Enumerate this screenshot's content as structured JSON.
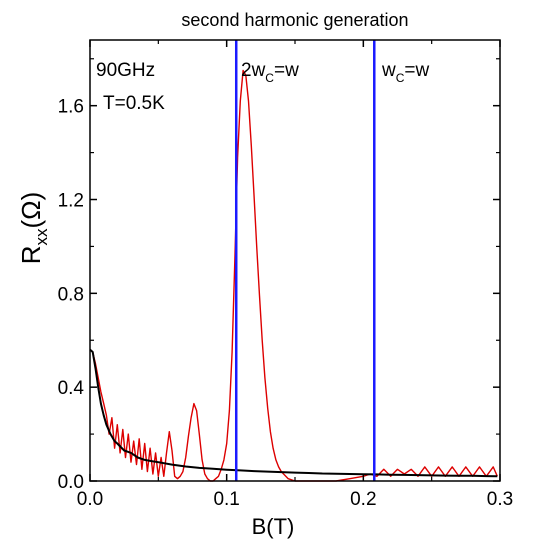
{
  "chart_data": {
    "type": "line",
    "title": "second harmonic generation",
    "xlabel": "B(T)",
    "ylabel": {
      "base": "R",
      "sub": "xx",
      "rest": "(Ω)"
    },
    "xlim": [
      0.0,
      0.3
    ],
    "ylim": [
      0.0,
      1.88
    ],
    "xticks": [
      0.0,
      0.1,
      0.2,
      0.3
    ],
    "xtick_labels": [
      "0.0",
      "0.1",
      "0.2",
      "0.3"
    ],
    "yticks": [
      0.0,
      0.4,
      0.8,
      1.2,
      1.6
    ],
    "ytick_labels": [
      "0.0",
      "0.4",
      "0.8",
      "1.2",
      "1.6"
    ],
    "grid": false,
    "annotations": {
      "freq": "90GHz",
      "temp": "T=0.5K",
      "line1": {
        "pre": "2w",
        "sub": "C",
        "post": "=w"
      },
      "line2": {
        "pre": "w",
        "sub": "C",
        "post": "=w"
      }
    },
    "vertical_lines": [
      {
        "x": 0.107,
        "color": "#1a1aff"
      },
      {
        "x": 0.208,
        "color": "#1a1aff"
      }
    ],
    "series": [
      {
        "color": "#dd0000",
        "x": [
          0.0,
          0.002,
          0.004,
          0.006,
          0.008,
          0.01,
          0.012,
          0.014,
          0.016,
          0.018,
          0.02,
          0.022,
          0.024,
          0.026,
          0.028,
          0.03,
          0.032,
          0.034,
          0.036,
          0.038,
          0.04,
          0.042,
          0.044,
          0.046,
          0.048,
          0.05,
          0.052,
          0.054,
          0.056,
          0.058,
          0.06,
          0.062,
          0.064,
          0.066,
          0.068,
          0.07,
          0.072,
          0.074,
          0.076,
          0.078,
          0.08,
          0.082,
          0.084,
          0.086,
          0.088,
          0.09,
          0.092,
          0.094,
          0.096,
          0.098,
          0.1,
          0.102,
          0.104,
          0.106,
          0.108,
          0.11,
          0.112,
          0.114,
          0.116,
          0.118,
          0.12,
          0.122,
          0.124,
          0.126,
          0.128,
          0.13,
          0.132,
          0.134,
          0.136,
          0.138,
          0.14,
          0.145,
          0.15,
          0.16,
          0.17,
          0.18,
          0.19,
          0.2,
          0.205,
          0.21,
          0.215,
          0.22,
          0.225,
          0.23,
          0.235,
          0.24,
          0.245,
          0.25,
          0.255,
          0.26,
          0.265,
          0.27,
          0.275,
          0.28,
          0.285,
          0.29,
          0.295,
          0.298
        ],
        "y": [
          0.56,
          0.55,
          0.5,
          0.44,
          0.38,
          0.33,
          0.28,
          0.2,
          0.27,
          0.14,
          0.24,
          0.12,
          0.22,
          0.1,
          0.2,
          0.08,
          0.17,
          0.07,
          0.18,
          0.05,
          0.16,
          0.04,
          0.14,
          0.03,
          0.12,
          0.02,
          0.1,
          0.02,
          0.12,
          0.21,
          0.13,
          0.02,
          0.01,
          0.02,
          0.04,
          0.1,
          0.19,
          0.27,
          0.33,
          0.3,
          0.2,
          0.09,
          0.03,
          0.01,
          0.0,
          0.0,
          0.01,
          0.02,
          0.05,
          0.09,
          0.16,
          0.3,
          0.55,
          0.95,
          1.38,
          1.62,
          1.75,
          1.73,
          1.62,
          1.43,
          1.22,
          1.0,
          0.79,
          0.6,
          0.44,
          0.31,
          0.21,
          0.14,
          0.09,
          0.06,
          0.04,
          0.01,
          0.0,
          0.0,
          0.0,
          0.0,
          0.01,
          0.02,
          0.03,
          0.02,
          0.05,
          0.02,
          0.05,
          0.03,
          0.05,
          0.02,
          0.06,
          0.02,
          0.06,
          0.02,
          0.06,
          0.02,
          0.06,
          0.02,
          0.06,
          0.02,
          0.06,
          0.02
        ]
      },
      {
        "color": "#000000",
        "x": [
          0.0,
          0.002,
          0.004,
          0.006,
          0.008,
          0.01,
          0.012,
          0.015,
          0.018,
          0.02,
          0.025,
          0.03,
          0.035,
          0.04,
          0.045,
          0.05,
          0.06,
          0.07,
          0.08,
          0.09,
          0.1,
          0.11,
          0.12,
          0.13,
          0.14,
          0.15,
          0.16,
          0.17,
          0.18,
          0.19,
          0.2,
          0.21,
          0.22,
          0.23,
          0.24,
          0.25,
          0.26,
          0.27,
          0.28,
          0.29,
          0.298
        ],
        "y": [
          0.56,
          0.55,
          0.48,
          0.4,
          0.33,
          0.28,
          0.24,
          0.2,
          0.17,
          0.16,
          0.13,
          0.12,
          0.1,
          0.09,
          0.085,
          0.08,
          0.07,
          0.062,
          0.056,
          0.052,
          0.048,
          0.045,
          0.042,
          0.04,
          0.038,
          0.036,
          0.034,
          0.032,
          0.031,
          0.03,
          0.029,
          0.028,
          0.027,
          0.026,
          0.025,
          0.024,
          0.023,
          0.022,
          0.022,
          0.021,
          0.02
        ]
      }
    ]
  }
}
